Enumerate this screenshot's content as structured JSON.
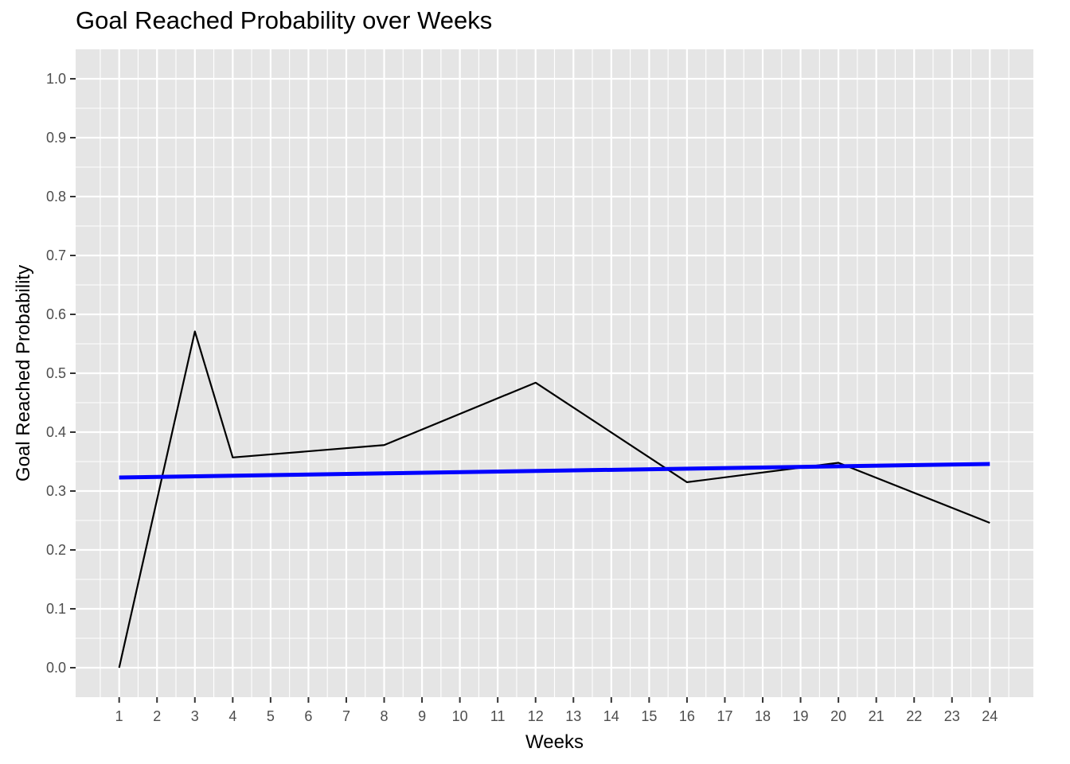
{
  "chart_data": {
    "type": "line",
    "title": "Goal Reached Probability over Weeks",
    "xlabel": "Weeks",
    "ylabel": "Goal Reached Probability",
    "x_ticks": [
      1,
      2,
      3,
      4,
      5,
      6,
      7,
      8,
      9,
      10,
      11,
      12,
      13,
      14,
      15,
      16,
      17,
      18,
      19,
      20,
      21,
      22,
      23,
      24
    ],
    "y_ticks": [
      "0.0",
      "0.1",
      "0.2",
      "0.3",
      "0.4",
      "0.5",
      "0.6",
      "0.7",
      "0.8",
      "0.9",
      "1.0"
    ],
    "xlim": [
      -0.15,
      25.15
    ],
    "ylim": [
      -0.05,
      1.05
    ],
    "grid": true,
    "background": "#e5e5e5",
    "series": [
      {
        "type": "line",
        "color": "#000000",
        "x": [
          1,
          3,
          4,
          8,
          12,
          16,
          20,
          24
        ],
        "y": [
          0.0,
          0.571,
          0.357,
          0.378,
          0.484,
          0.315,
          0.348,
          0.246
        ]
      },
      {
        "type": "trend",
        "color": "#0000ff",
        "x": [
          1,
          24
        ],
        "y": [
          0.323,
          0.346
        ]
      }
    ]
  }
}
